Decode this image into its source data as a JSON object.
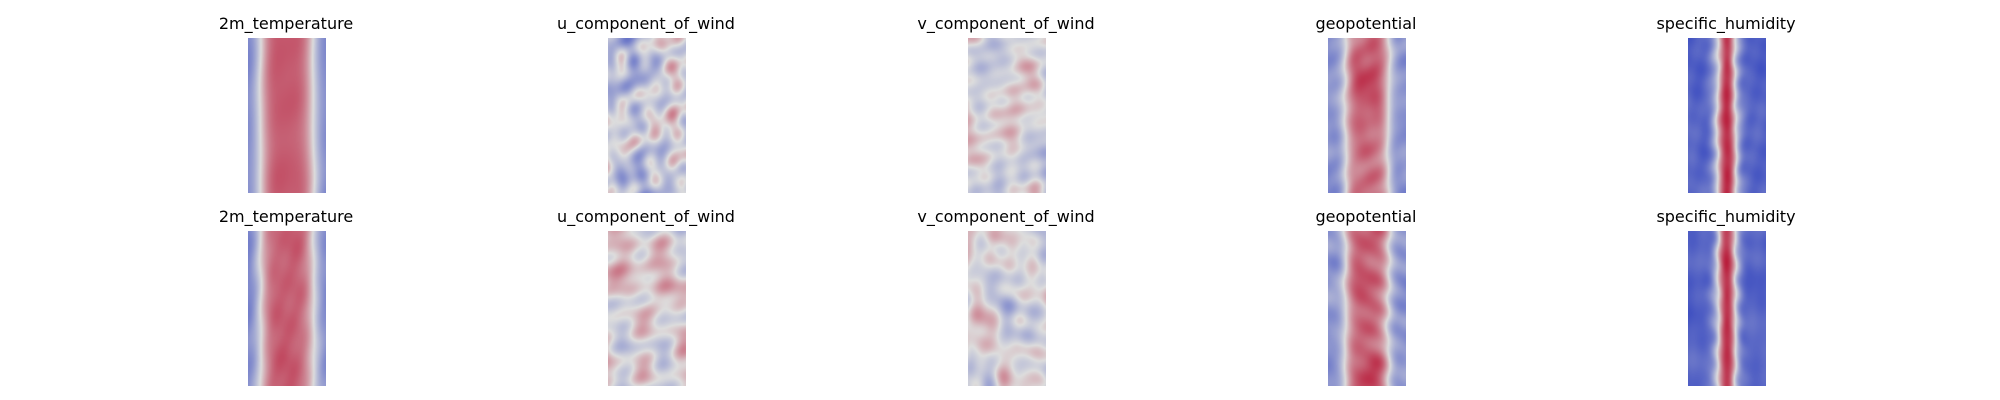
{
  "chart_data": {
    "type": "heatmap",
    "colormap": "coolwarm",
    "colors": {
      "cold": "#3b4cc0",
      "neutral": "#dddddd",
      "warm": "#b40426"
    },
    "rows": [
      {
        "panels": [
          {
            "title": "2m_temperature",
            "pattern": "warm-core"
          },
          {
            "title": "u_component_of_wind",
            "pattern": "mixed-cool"
          },
          {
            "title": "v_component_of_wind",
            "pattern": "turbulent"
          },
          {
            "title": "geopotential",
            "pattern": "warm-core-cool-edges"
          },
          {
            "title": "specific_humidity",
            "pattern": "narrow-warm-core"
          }
        ]
      },
      {
        "panels": [
          {
            "title": "2m_temperature",
            "pattern": "warm-core"
          },
          {
            "title": "u_component_of_wind",
            "pattern": "mixed-warm"
          },
          {
            "title": "v_component_of_wind",
            "pattern": "turbulent"
          },
          {
            "title": "geopotential",
            "pattern": "warm-core-cool-edges"
          },
          {
            "title": "specific_humidity",
            "pattern": "narrow-warm-core"
          }
        ]
      }
    ]
  }
}
